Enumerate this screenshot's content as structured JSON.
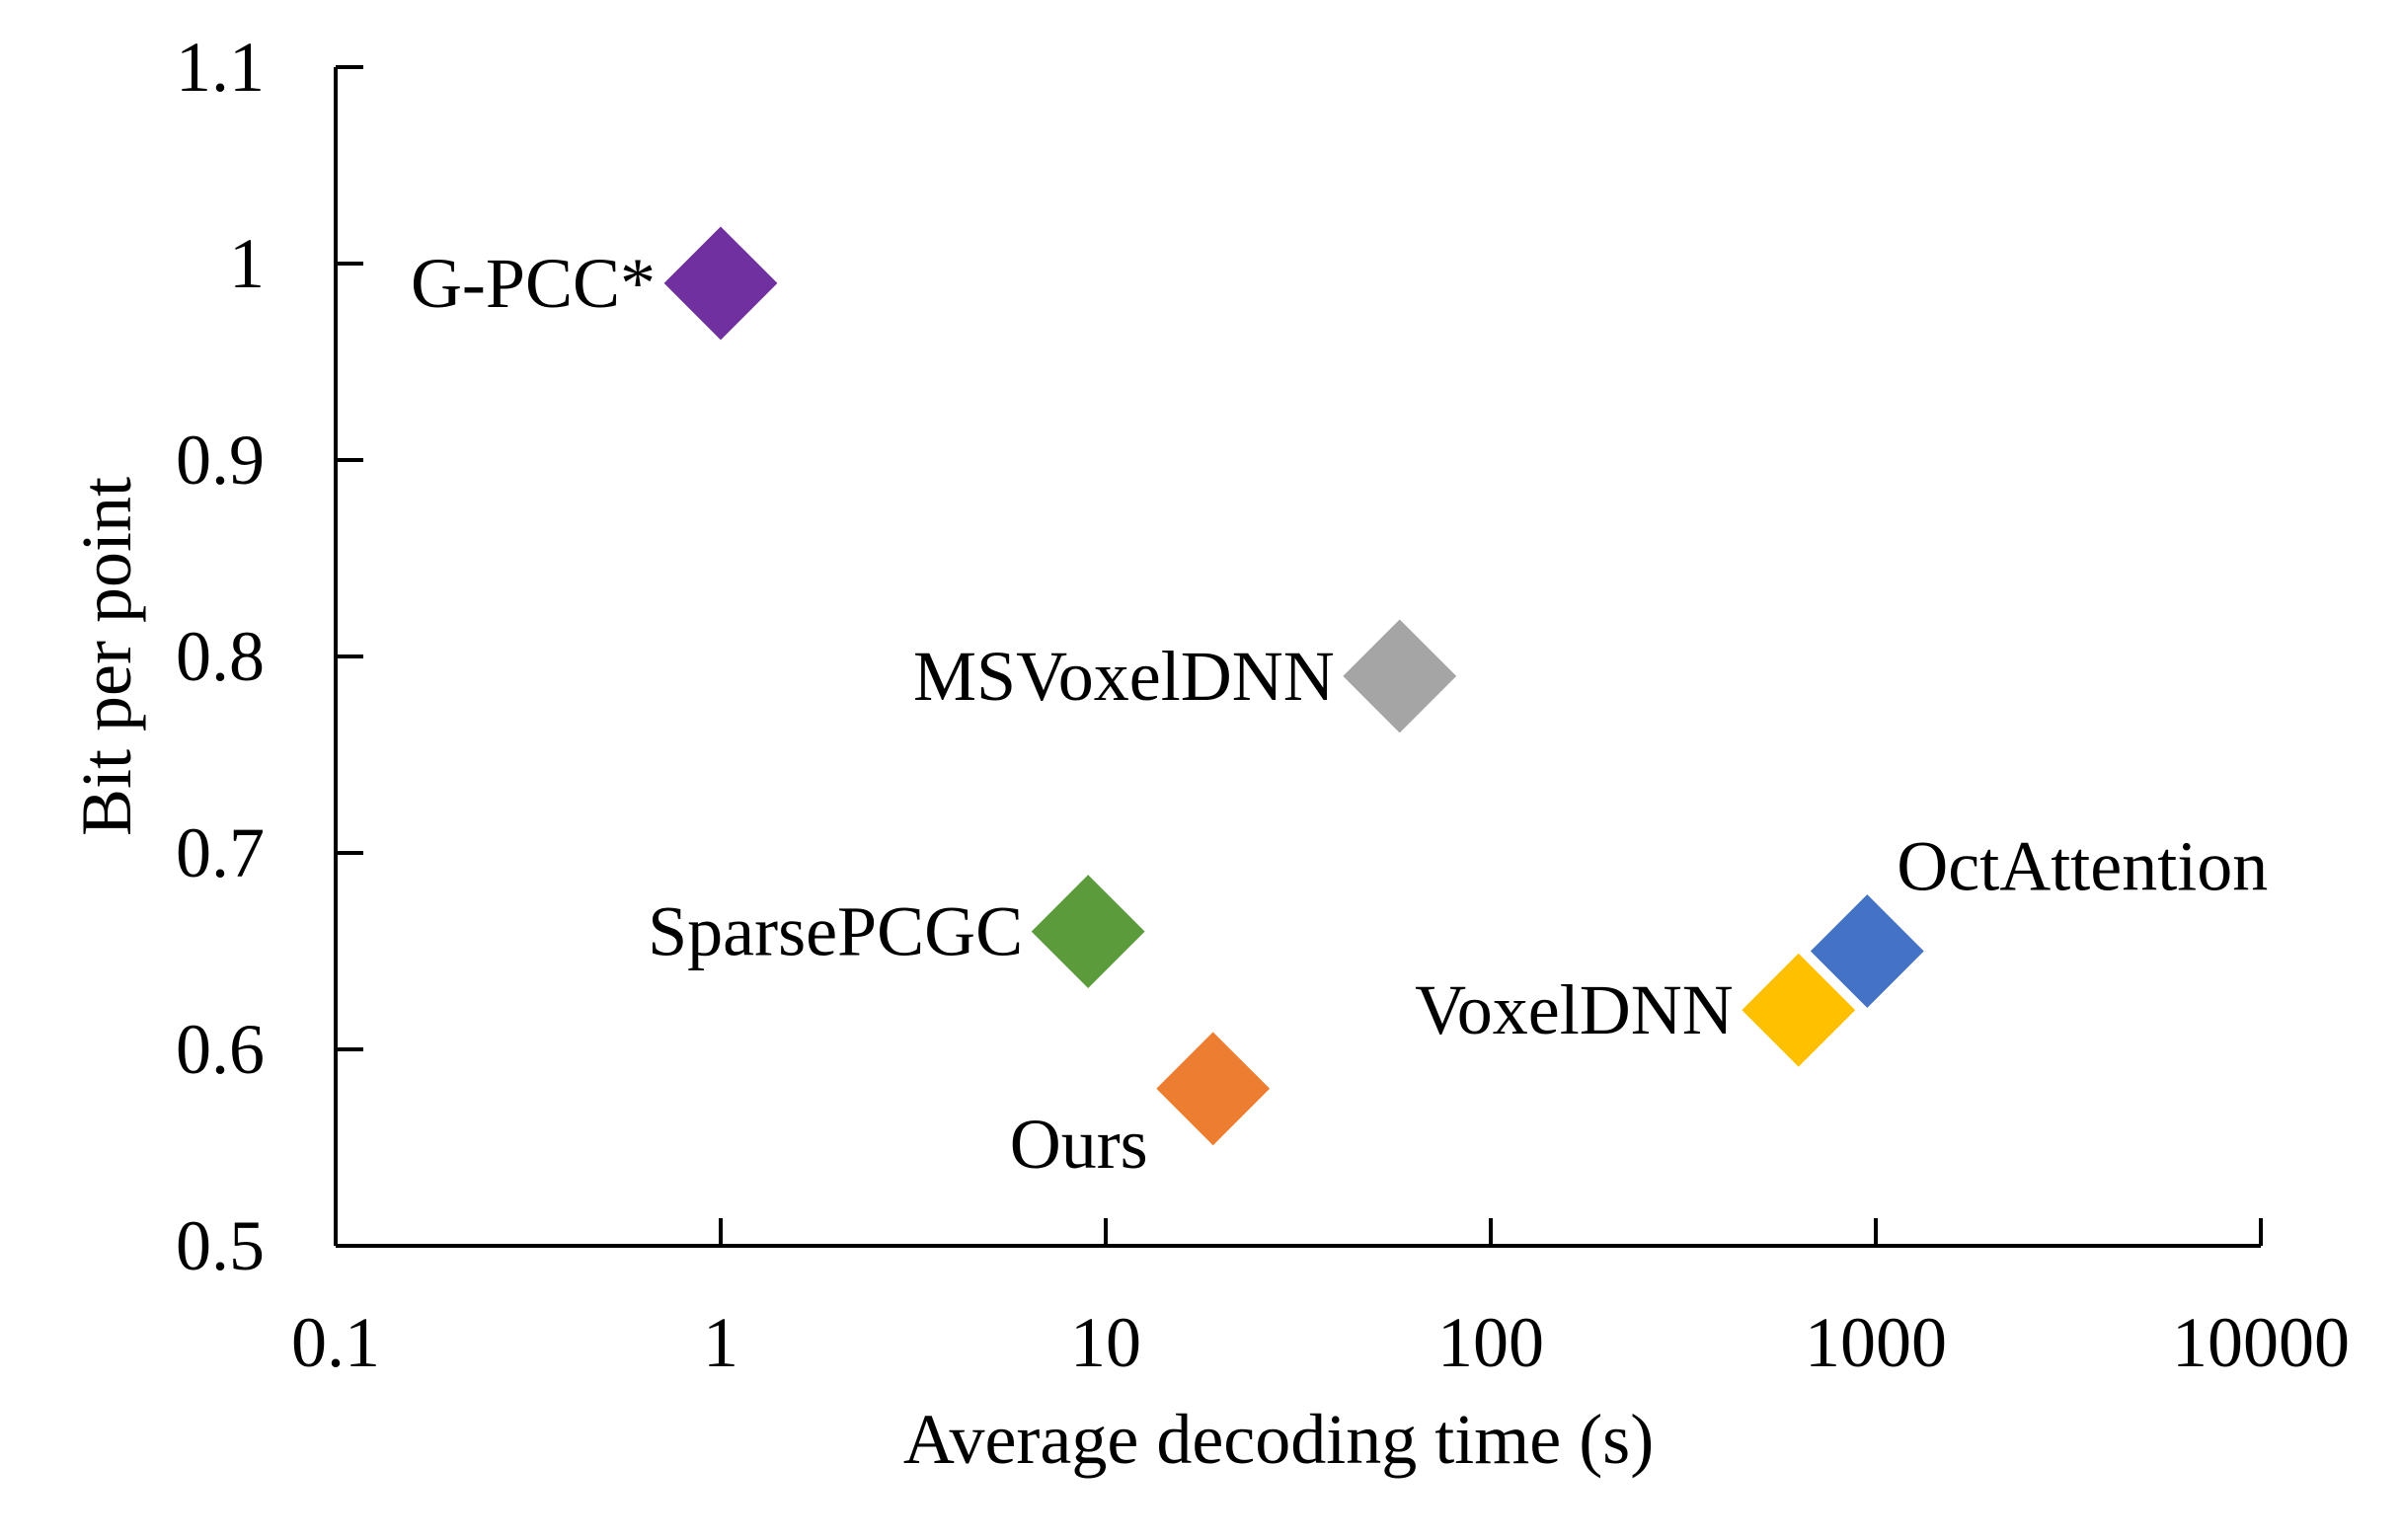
{
  "chart_data": {
    "type": "scatter",
    "title": "",
    "xlabel": "Average decoding time (s)",
    "ylabel": "Bit per point",
    "xscale": "log",
    "xlim": [
      0.1,
      10000
    ],
    "ylim": [
      0.5,
      1.1
    ],
    "xticks": [
      0.1,
      1,
      10,
      100,
      1000,
      10000
    ],
    "xtick_labels": [
      "0.1",
      "1",
      "10",
      "100",
      "1000",
      "10000"
    ],
    "yticks": [
      0.5,
      0.6,
      0.7,
      0.8,
      0.9,
      1.0,
      1.1
    ],
    "ytick_labels": [
      "0.5",
      "0.6",
      "0.7",
      "0.8",
      "0.9",
      "1",
      "1.1"
    ],
    "grid": false,
    "legend": "none",
    "marker": "diamond",
    "points": [
      {
        "name": "G-PCC*",
        "x": 1,
        "y": 0.99,
        "color": "#7030A0",
        "label_side": "left"
      },
      {
        "name": "MSVoxelDNN",
        "x": 58,
        "y": 0.79,
        "color": "#A5A5A5",
        "label_side": "left"
      },
      {
        "name": "SparsePCGC",
        "x": 9,
        "y": 0.66,
        "color": "#5B9B3C",
        "label_side": "left"
      },
      {
        "name": "Ours",
        "x": 19,
        "y": 0.58,
        "color": "#ED7D31",
        "label_side": "below-left"
      },
      {
        "name": "VoxelDNN",
        "x": 630,
        "y": 0.62,
        "color": "#FFC000",
        "label_side": "left"
      },
      {
        "name": "OctAttention",
        "x": 950,
        "y": 0.65,
        "color": "#4472C4",
        "label_side": "above-right"
      }
    ]
  }
}
